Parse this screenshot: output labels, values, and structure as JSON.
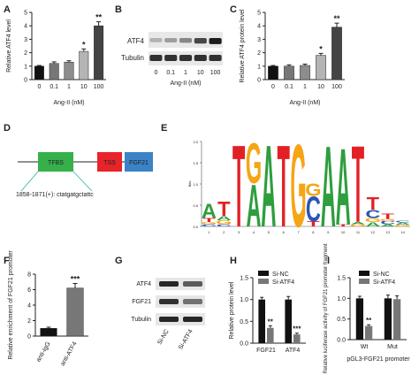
{
  "figure_panels": {
    "panel_letters": [
      "A",
      "B",
      "C",
      "D",
      "E",
      "F",
      "G",
      "H",
      "I"
    ]
  },
  "chart_data": [
    {
      "id": "A",
      "type": "bar",
      "title": "",
      "xlabel": "Ang-II (nM)",
      "ylabel": "Relative ATF4 level",
      "categories": [
        "0",
        "0.1",
        "1",
        "10",
        "100"
      ],
      "values": [
        1.0,
        1.2,
        1.3,
        2.1,
        4.0
      ],
      "errors": [
        0.05,
        0.12,
        0.1,
        0.18,
        0.3
      ],
      "colors": [
        "#111111",
        "#777777",
        "#8d8d8d",
        "#b4b4b4",
        "#444444"
      ],
      "significance": [
        "",
        "",
        "",
        "*",
        "**"
      ],
      "ylim": [
        0,
        5
      ],
      "yticks": [
        "0",
        "1",
        "2",
        "3",
        "4",
        "5"
      ]
    },
    {
      "id": "B",
      "type": "blot",
      "labels": [
        "ATF4",
        "Tubulin"
      ],
      "lanes": [
        "0",
        "0.1",
        "1",
        "10",
        "100"
      ],
      "xlabel": "Ang-II (nM)",
      "atf4_intensity": [
        0.25,
        0.35,
        0.45,
        0.75,
        0.95
      ]
    },
    {
      "id": "C",
      "type": "bar",
      "xlabel": "Ang-II (nM)",
      "ylabel": "Relative ATF4 protein level",
      "categories": [
        "0",
        "0.1",
        "1",
        "10",
        "100"
      ],
      "values": [
        1.0,
        1.0,
        1.05,
        1.8,
        3.9
      ],
      "errors": [
        0.05,
        0.1,
        0.1,
        0.15,
        0.3
      ],
      "colors": [
        "#111111",
        "#777777",
        "#8d8d8d",
        "#b4b4b4",
        "#444444"
      ],
      "significance": [
        "",
        "",
        "",
        "*",
        "**"
      ],
      "ylim": [
        0,
        5
      ],
      "yticks": [
        "0",
        "1",
        "2",
        "3",
        "4",
        "5"
      ]
    },
    {
      "id": "D",
      "type": "diagram",
      "boxes": [
        "TFBS",
        "TSS",
        "FGF21"
      ],
      "site_text": "1858-1871(+): ctatgatgctattc"
    },
    {
      "id": "E",
      "type": "sequence-logo",
      "ylabel": "Bits",
      "yticks": [
        "0.0",
        "0.5",
        "1.0",
        "1.5",
        "2.0"
      ],
      "positions": [
        "1",
        "2",
        "3",
        "4",
        "5",
        "6",
        "7",
        "8",
        "9",
        "10",
        "11",
        "12",
        "13",
        "14"
      ]
    },
    {
      "id": "F",
      "type": "bar",
      "ylabel": "Relative enrichment of FGF21 promoter",
      "categories": [
        "anti-IgG",
        "anti-ATF4"
      ],
      "values": [
        1.0,
        6.2
      ],
      "errors": [
        0.15,
        0.6
      ],
      "colors": [
        "#111111",
        "#777777"
      ],
      "significance": [
        "",
        "***"
      ],
      "ylim": [
        0,
        8
      ],
      "yticks": [
        "0",
        "2",
        "4",
        "6",
        "8"
      ]
    },
    {
      "id": "G",
      "type": "blot",
      "labels": [
        "ATF4",
        "FGF21",
        "Tubulin"
      ],
      "lanes": [
        "Si-NC",
        "Si-ATF4"
      ]
    },
    {
      "id": "H",
      "type": "bar",
      "ylabel": "Relative protein level",
      "categories": [
        "FGF21",
        "ATF4"
      ],
      "series": [
        {
          "name": "Si-NC",
          "values": [
            1.0,
            1.0
          ],
          "errors": [
            0.05,
            0.07
          ],
          "color": "#111111"
        },
        {
          "name": "Si-ATF4",
          "values": [
            0.35,
            0.2
          ],
          "errors": [
            0.05,
            0.03
          ],
          "color": "#777777"
        }
      ],
      "significance": [
        "**",
        "***"
      ],
      "ylim": [
        0,
        1.5
      ],
      "yticks": [
        "0.0",
        "0.5",
        "1.0",
        "1.5"
      ],
      "legend": "top-right"
    },
    {
      "id": "I",
      "type": "bar",
      "xlabel": "pGL3-FGF21 promoter",
      "ylabel": "Relative luciferase activity of FGF21 promoter fragment",
      "categories": [
        "Wt",
        "Mut"
      ],
      "series": [
        {
          "name": "Si-NC",
          "values": [
            1.0,
            1.0
          ],
          "errors": [
            0.05,
            0.08
          ],
          "color": "#111111"
        },
        {
          "name": "Si-ATF4",
          "values": [
            0.33,
            0.98
          ],
          "errors": [
            0.03,
            0.08
          ],
          "color": "#777777"
        }
      ],
      "significance": [
        "**",
        ""
      ],
      "ylim": [
        0,
        1.5
      ],
      "yticks": [
        "0.0",
        "0.5",
        "1.0",
        "1.5"
      ],
      "legend": "top-right"
    }
  ]
}
